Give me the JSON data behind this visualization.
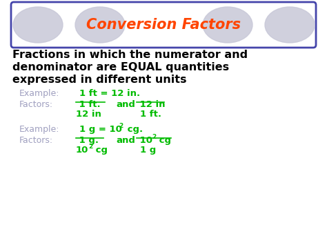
{
  "bg_color": "#ffffff",
  "title": "Conversion Factors",
  "title_color": "#ff4500",
  "title_box_border_color": "#4444aa",
  "title_box_bg": "#ffffff",
  "ellipse_color": "#c8c8d8",
  "body_line1": "Fractions in which the numerator and",
  "body_line2": "denominator are EQUAL quantities",
  "body_line3": "expressed in different units",
  "body_color": "#000000",
  "example_color": "#a0a0c0",
  "green_color": "#00bb00",
  "ex1_label": "Example:",
  "ex1_text": "1 ft = 12 in.",
  "fac1_label": "Factors:",
  "fac1_num1": " 1 ft. ",
  "fac1_and": "and",
  "fac1_num2": " 12 in",
  "fac1_den1": "12 in",
  "fac1_den2": "1 ft.",
  "ex2_label": "Example:",
  "ex2_text_base": "1 g = 10",
  "ex2_sup": "2",
  "ex2_tail": " cg.",
  "fac2_label": "Factors:",
  "fac2_num1": " 1 g. ",
  "fac2_and": "and",
  "fac2_num2_base": " 10",
  "fac2_num2_sup": "2",
  "fac2_num2_tail": " cg",
  "fac2_den1_base": "10",
  "fac2_den1_sup": "2",
  "fac2_den1_tail": " cg",
  "fac2_den2": "1 g"
}
